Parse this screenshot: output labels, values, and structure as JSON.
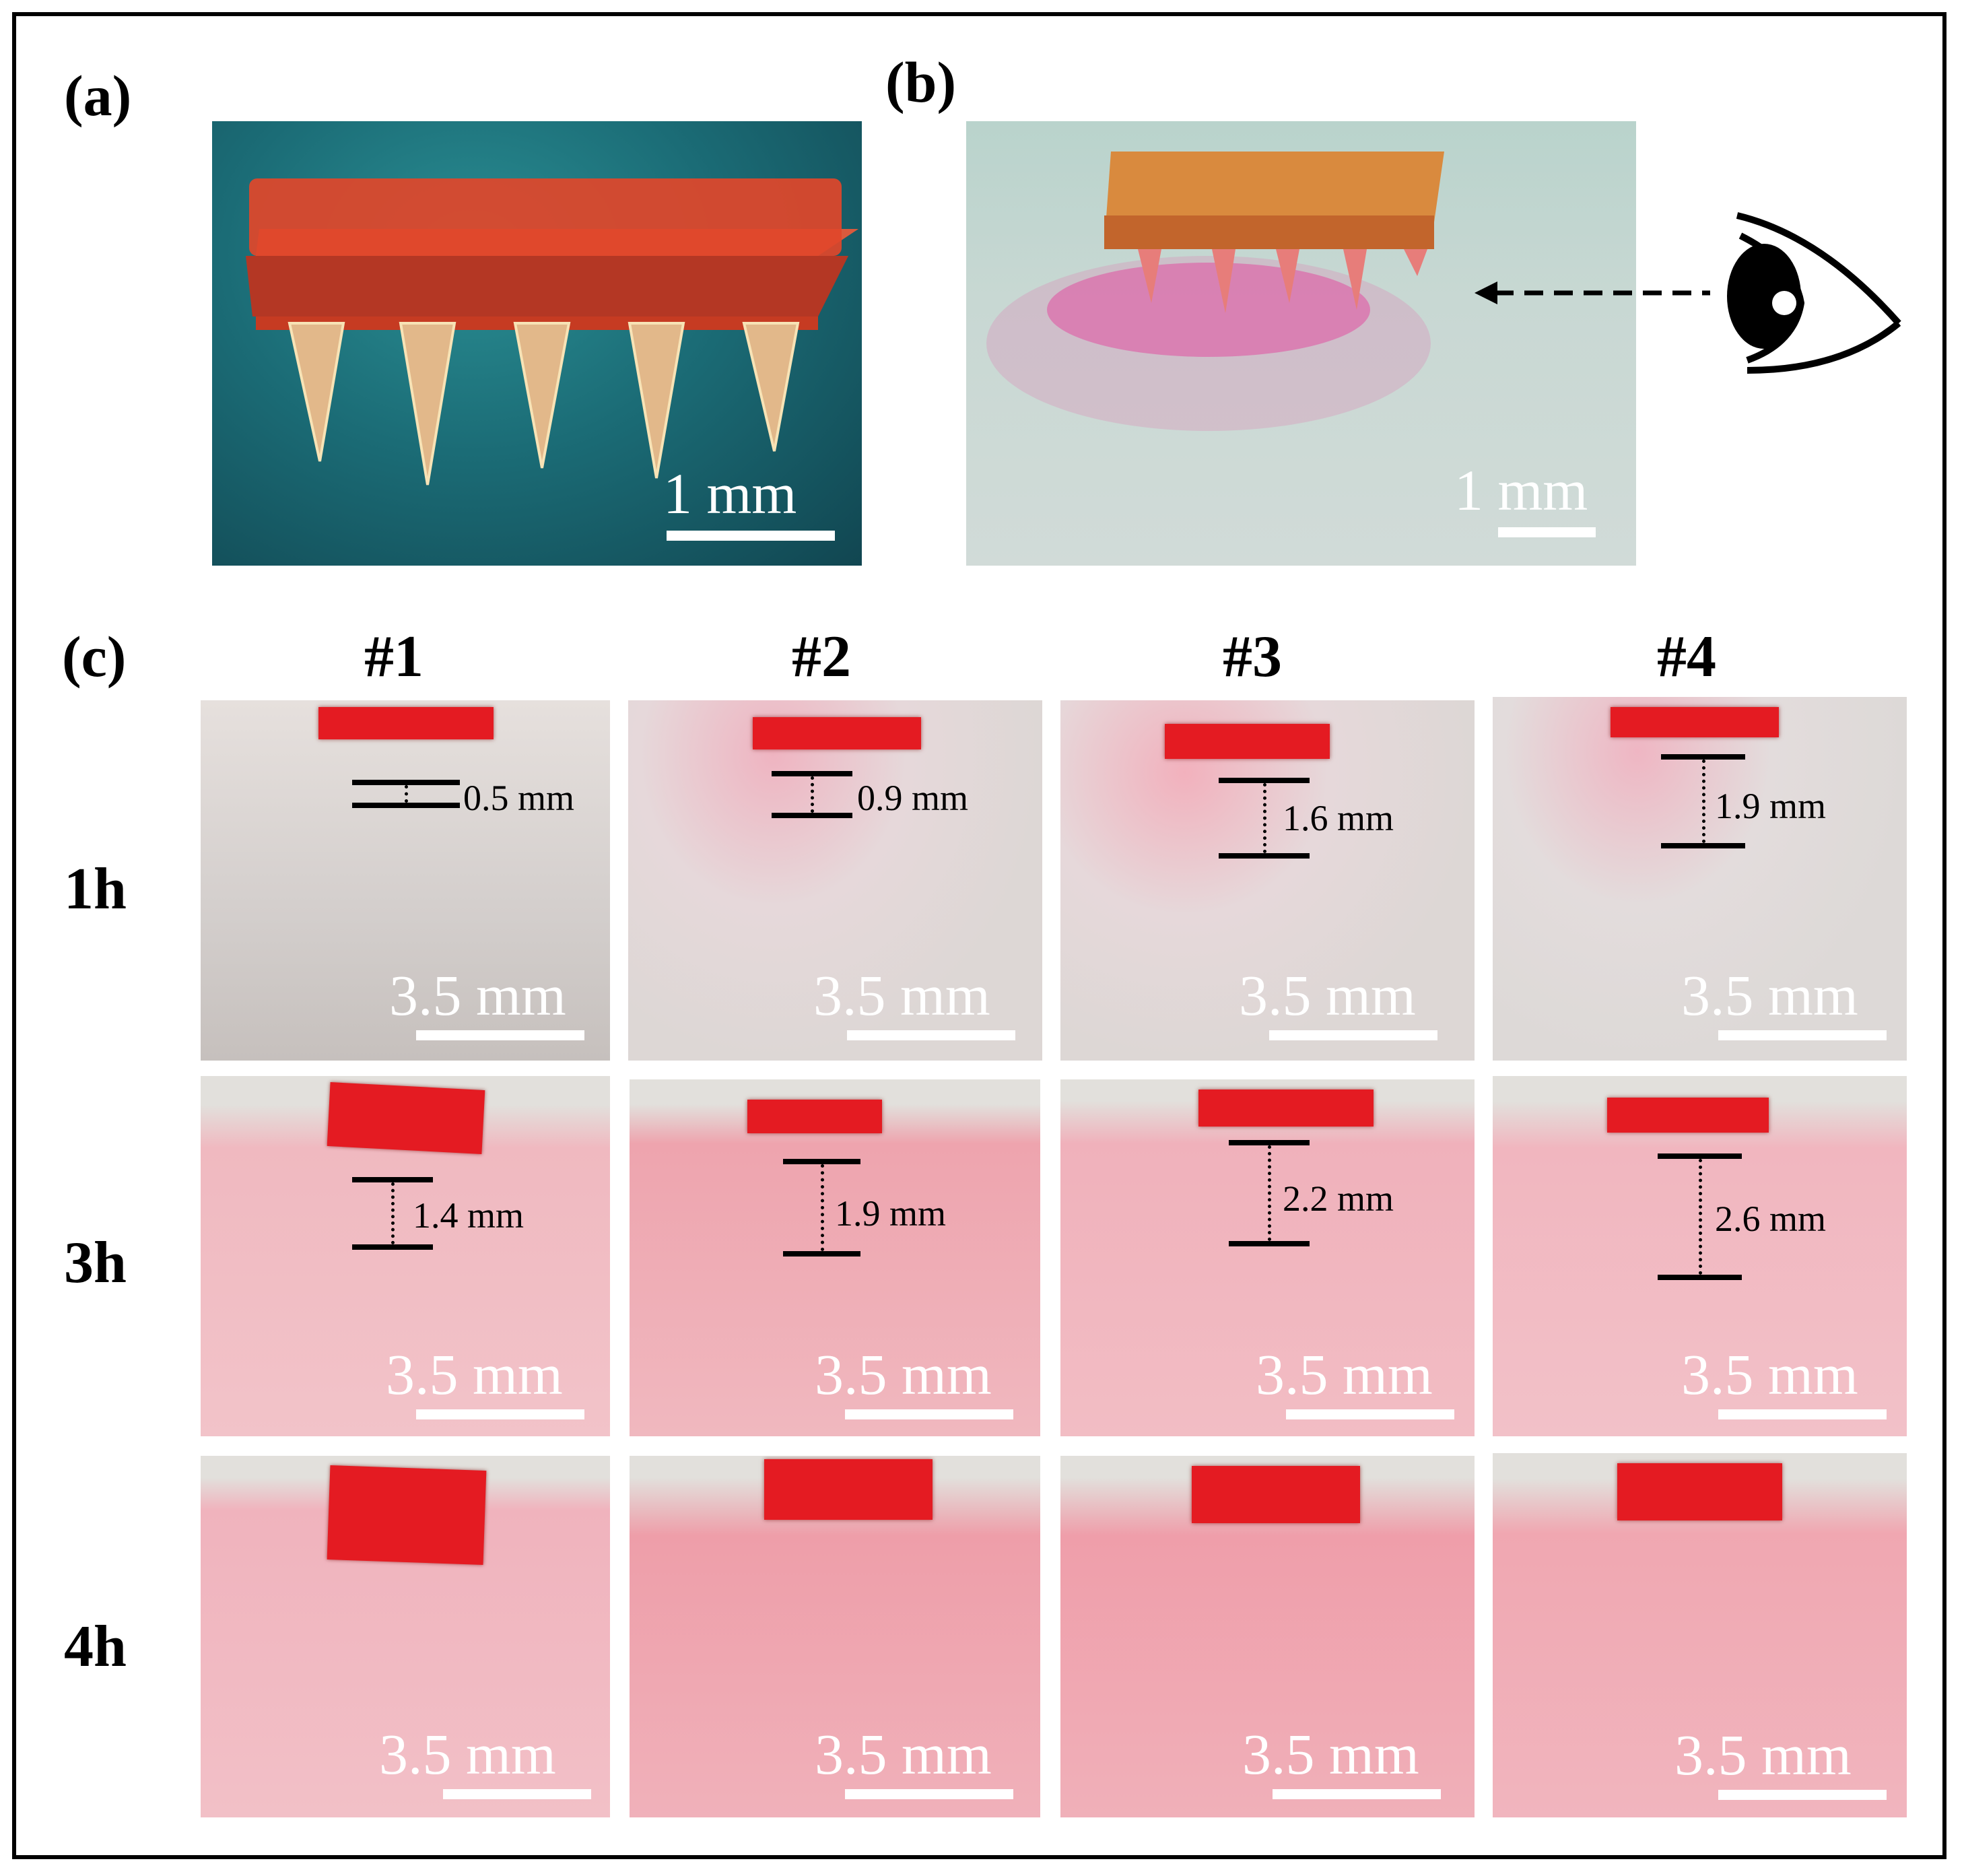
{
  "panels": {
    "a": {
      "label": "(a)",
      "scale": "1 mm"
    },
    "b": {
      "label": "(b)",
      "scale": "1 mm"
    },
    "c": {
      "label": "(c)"
    }
  },
  "columns": [
    "#1",
    "#2",
    "#3",
    "#4"
  ],
  "rows": [
    "1h",
    "3h",
    "4h"
  ],
  "grid_scale": "3.5 mm",
  "measurements": {
    "1h": [
      "0.5 mm",
      "0.9 mm",
      "1.6 mm",
      "1.9 mm"
    ],
    "3h": [
      "1.4 mm",
      "1.9 mm",
      "2.2 mm",
      "2.6 mm"
    ]
  },
  "colors": {
    "patch": "#e41b22",
    "gel_1h": "#dcd6d3",
    "gel_pink": "#f1b3bb",
    "panel_a_bg": "#1f6e78",
    "panel_b_bg": "#c9d8d3"
  },
  "icons": {
    "viewer": "eye-icon",
    "direction": "dashed-arrow-left"
  }
}
